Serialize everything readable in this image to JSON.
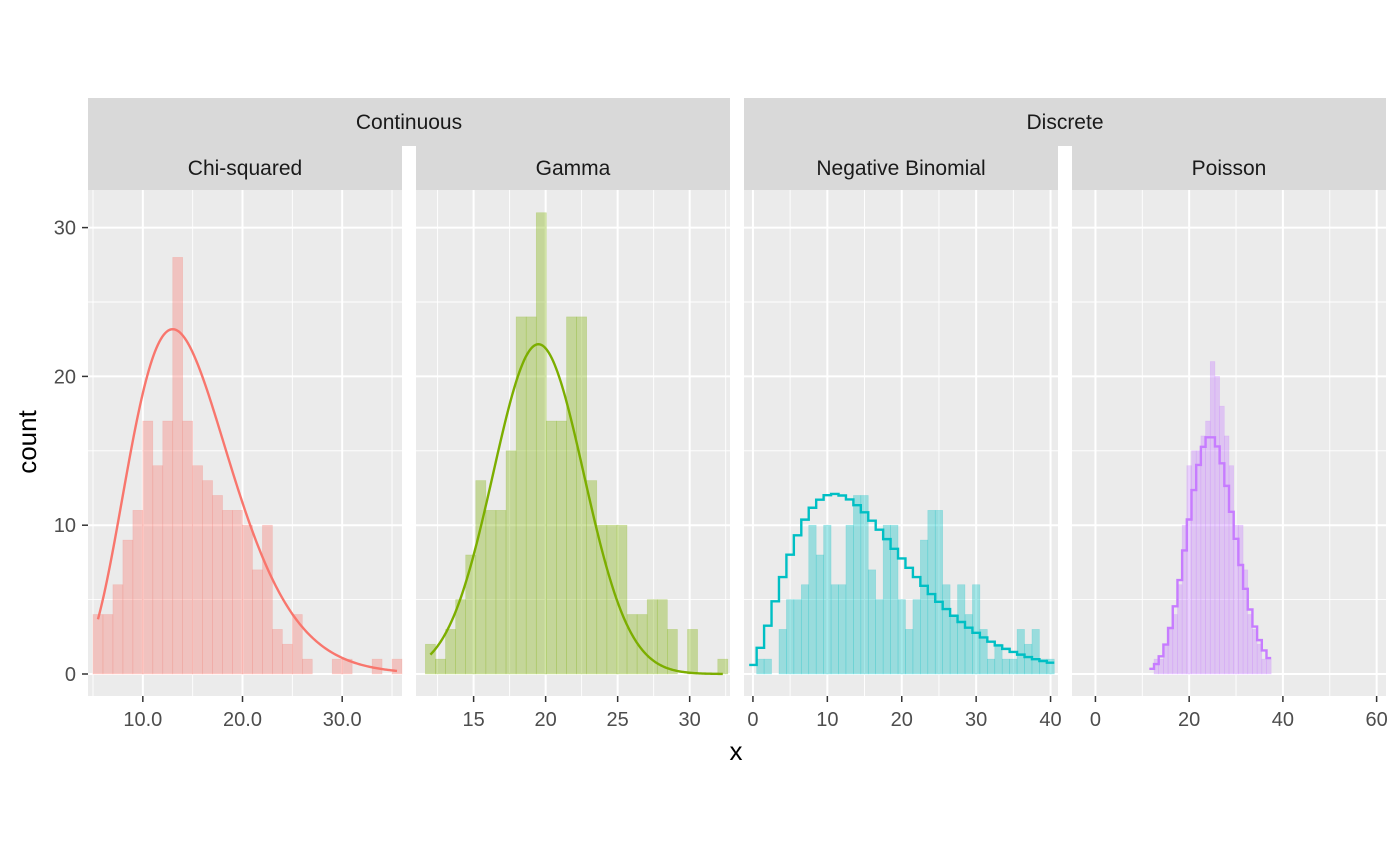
{
  "chart_data": {
    "type": "bar",
    "xlabel": "x",
    "ylabel": "count",
    "ylim": [
      0,
      30
    ],
    "y_ticks": [
      "0",
      "10",
      "20",
      "30"
    ],
    "grid": true,
    "groups": [
      "Continuous",
      "Discrete"
    ],
    "panels": [
      {
        "group": "Continuous",
        "name": "Chi-squared",
        "color": "#F8766D",
        "xlim": [
          4.5,
          36.0
        ],
        "x_ticks": [
          {
            "v": 10,
            "label": "10.0"
          },
          {
            "v": 20,
            "label": "20.0"
          },
          {
            "v": 30,
            "label": "30.0"
          }
        ],
        "bin_width": 1.0,
        "bin_centers": [
          5.5,
          6.5,
          7.5,
          8.5,
          9.5,
          10.5,
          11.5,
          12.5,
          13.5,
          14.5,
          15.5,
          16.5,
          17.5,
          18.5,
          19.5,
          20.5,
          21.5,
          22.5,
          23.5,
          24.5,
          25.5,
          26.5,
          27.5,
          28.5,
          29.5,
          30.5,
          31.5,
          32.5,
          33.5,
          34.5,
          35.5
        ],
        "counts": [
          4,
          4,
          6,
          9,
          11,
          17,
          14,
          17,
          28,
          17,
          14,
          13,
          12,
          11,
          11,
          10,
          7,
          10,
          3,
          2,
          4,
          1,
          0,
          0,
          1,
          1,
          0,
          0,
          1,
          0,
          1
        ],
        "curve": {
          "kind": "chisq",
          "df": 15,
          "n": 300,
          "bw": 1.0
        }
      },
      {
        "group": "Continuous",
        "name": "Gamma",
        "color": "#7CAE00",
        "xlim": [
          11.0,
          32.8
        ],
        "x_ticks": [
          {
            "v": 15,
            "label": "15"
          },
          {
            "v": 20,
            "label": "20"
          },
          {
            "v": 25,
            "label": "25"
          },
          {
            "v": 30,
            "label": "30"
          }
        ],
        "bin_width": 0.7,
        "bin_centers": [
          12.0,
          12.7,
          13.4,
          14.1,
          14.8,
          15.5,
          16.2,
          16.9,
          17.6,
          18.3,
          19.0,
          19.7,
          20.4,
          21.1,
          21.8,
          22.5,
          23.2,
          23.9,
          24.6,
          25.3,
          26.0,
          26.7,
          27.4,
          28.1,
          28.8,
          29.5,
          30.2,
          30.9,
          31.6,
          32.3
        ],
        "counts": [
          2,
          1,
          3,
          5,
          8,
          13,
          11,
          11,
          15,
          24,
          24,
          31,
          17,
          17,
          24,
          24,
          13,
          10,
          10,
          10,
          4,
          4,
          5,
          5,
          3,
          0,
          3,
          0,
          0,
          1
        ],
        "curve": {
          "kind": "normal",
          "mean": 19.5,
          "sd": 3.15,
          "n": 250,
          "bw": 0.7
        }
      },
      {
        "group": "Discrete",
        "name": "Negative Binomial",
        "color": "#00BFC4",
        "xlim": [
          -1.2,
          41.0
        ],
        "x_ticks": [
          {
            "v": 0,
            "label": "0"
          },
          {
            "v": 10,
            "label": "10"
          },
          {
            "v": 20,
            "label": "20"
          },
          {
            "v": 30,
            "label": "30"
          },
          {
            "v": 40,
            "label": "40"
          }
        ],
        "bin_width": 1.0,
        "bin_centers": [
          0,
          1,
          2,
          3,
          4,
          5,
          6,
          7,
          8,
          9,
          10,
          11,
          12,
          13,
          14,
          15,
          16,
          17,
          18,
          19,
          20,
          21,
          22,
          23,
          24,
          25,
          26,
          27,
          28,
          29,
          30,
          31,
          32,
          33,
          34,
          35,
          36,
          37,
          38,
          39,
          40
        ],
        "counts": [
          0,
          1,
          1,
          0,
          3,
          5,
          5,
          6,
          10,
          8,
          10,
          6,
          6,
          10,
          12,
          12,
          7,
          5,
          10,
          10,
          5,
          3,
          5,
          9,
          11,
          11,
          6,
          4,
          6,
          4,
          6,
          3,
          1,
          2,
          1,
          1,
          3,
          2,
          3,
          1,
          1
        ],
        "curve": {
          "kind": "negbin",
          "mu": 16.0,
          "size": 3.5,
          "n": 250
        }
      },
      {
        "group": "Discrete",
        "name": "Poisson",
        "color": "#C77CFF",
        "xlim": [
          -5.0,
          62.0
        ],
        "x_ticks": [
          {
            "v": 0,
            "label": "0"
          },
          {
            "v": 20,
            "label": "20"
          },
          {
            "v": 40,
            "label": "40"
          },
          {
            "v": 60,
            "label": "60"
          }
        ],
        "bin_width": 1.0,
        "bin_centers": [
          13,
          14,
          15,
          16,
          17,
          18,
          19,
          20,
          21,
          22,
          23,
          24,
          25,
          26,
          27,
          28,
          29,
          30,
          31,
          32,
          33,
          34,
          35,
          36,
          37
        ],
        "counts": [
          1,
          1,
          2,
          3,
          4,
          6,
          10,
          14,
          15,
          15,
          16,
          17,
          21,
          20,
          18,
          16,
          14,
          10,
          10,
          7,
          4,
          3,
          2,
          1,
          1
        ],
        "curve": {
          "kind": "poisson",
          "lambda": 25.0,
          "n": 200,
          "from": 12,
          "to": 37
        }
      }
    ]
  }
}
